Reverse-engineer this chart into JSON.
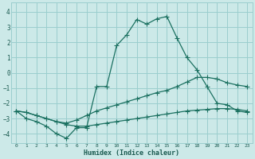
{
  "xlabel": "Humidex (Indice chaleur)",
  "bg_color": "#cce9e8",
  "grid_color": "#9bcece",
  "line_color": "#1a7060",
  "xlim": [
    -0.5,
    23.5
  ],
  "ylim": [
    -4.6,
    4.6
  ],
  "yticks": [
    -4,
    -3,
    -2,
    -1,
    0,
    1,
    2,
    3,
    4
  ],
  "xticks": [
    0,
    1,
    2,
    3,
    4,
    5,
    6,
    7,
    8,
    9,
    10,
    11,
    12,
    13,
    14,
    15,
    16,
    17,
    18,
    19,
    20,
    21,
    22,
    23
  ],
  "line1_x": [
    0,
    1,
    2,
    3,
    4,
    5,
    6,
    7,
    8,
    9,
    10,
    11,
    12,
    13,
    14,
    15,
    16,
    17,
    18,
    19,
    20,
    21,
    22,
    23
  ],
  "line1_y": [
    -2.5,
    -3.0,
    -3.2,
    -3.5,
    -4.0,
    -4.3,
    -3.6,
    -3.6,
    -0.9,
    -0.9,
    1.8,
    2.5,
    3.5,
    3.2,
    3.55,
    3.7,
    2.3,
    1.0,
    0.2,
    -0.9,
    -2.0,
    -2.1,
    -2.5,
    -2.6
  ],
  "line2_x": [
    0,
    1,
    2,
    3,
    4,
    5,
    6,
    7,
    8,
    9,
    10,
    11,
    12,
    13,
    14,
    15,
    16,
    17,
    18,
    19,
    20,
    21,
    22,
    23
  ],
  "line2_y": [
    -2.5,
    -2.6,
    -2.8,
    -3.0,
    -3.2,
    -3.3,
    -3.1,
    -2.8,
    -2.5,
    -2.3,
    -2.1,
    -1.9,
    -1.7,
    -1.5,
    -1.3,
    -1.15,
    -0.9,
    -0.6,
    -0.3,
    -0.3,
    -0.4,
    -0.65,
    -0.8,
    -0.9
  ],
  "line3_x": [
    0,
    1,
    2,
    3,
    4,
    5,
    6,
    7,
    8,
    9,
    10,
    11,
    12,
    13,
    14,
    15,
    16,
    17,
    18,
    19,
    20,
    21,
    22,
    23
  ],
  "line3_y": [
    -2.5,
    -2.6,
    -2.8,
    -3.0,
    -3.2,
    -3.4,
    -3.5,
    -3.5,
    -3.4,
    -3.3,
    -3.2,
    -3.1,
    -3.0,
    -2.9,
    -2.8,
    -2.7,
    -2.6,
    -2.5,
    -2.45,
    -2.4,
    -2.35,
    -2.35,
    -2.4,
    -2.5
  ]
}
